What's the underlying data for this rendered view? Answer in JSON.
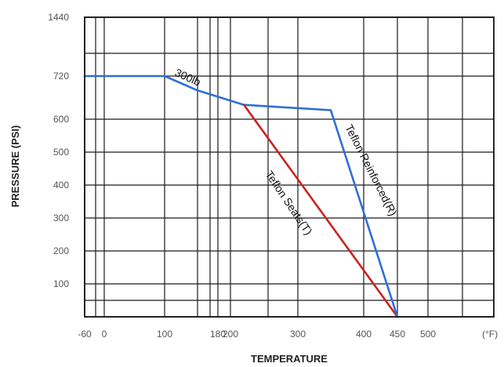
{
  "chart_data": {
    "type": "line",
    "xlabel": "TEMPERATURE",
    "ylabel": "PRESSURE (PSI)",
    "x_unit_label": "(°F)",
    "x_ticks": [
      "-60",
      "0",
      "100",
      "180",
      "200",
      "300",
      "400",
      "450",
      "500"
    ],
    "x_tick_values": [
      -60,
      0,
      100,
      180,
      200,
      300,
      400,
      450,
      500
    ],
    "y_ticks": [
      "1440",
      "720",
      "600",
      "500",
      "400",
      "300",
      "200",
      "100"
    ],
    "y_tick_values": [
      1440,
      720,
      600,
      500,
      400,
      300,
      200,
      100
    ],
    "x_gridlines": [
      -60,
      0,
      100,
      150,
      180,
      200,
      300,
      400,
      450,
      500
    ],
    "y_gridlines": [
      1440,
      720,
      600,
      500,
      400,
      300,
      200,
      100,
      0
    ],
    "y_scale": "segmented (1440 at top, evenly spaced 100-psi steps below 720)",
    "grid": true,
    "series": [
      {
        "name": "300lb",
        "color": "#2f6fd6",
        "points": [
          [
            -60,
            720
          ],
          [
            100,
            720
          ],
          [
            150,
            680
          ],
          [
            220,
            640
          ],
          [
            350,
            625
          ]
        ]
      },
      {
        "name": "Teflon Seats(T)",
        "color": "#cc2222",
        "points": [
          [
            220,
            640
          ],
          [
            450,
            0
          ]
        ]
      },
      {
        "name": "Teflon Reinforced(R)",
        "color": "#2f6fd6",
        "points": [
          [
            350,
            625
          ],
          [
            450,
            0
          ]
        ]
      }
    ]
  }
}
